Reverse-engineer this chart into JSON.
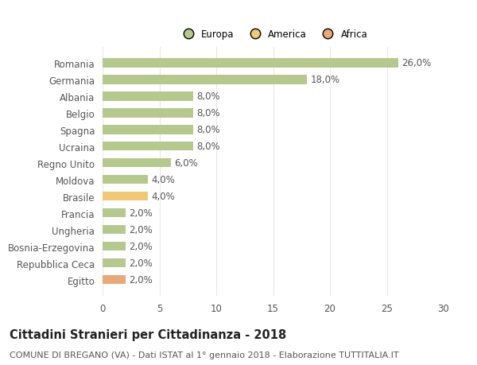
{
  "categories": [
    "Romania",
    "Germania",
    "Albania",
    "Belgio",
    "Spagna",
    "Ucraina",
    "Regno Unito",
    "Moldova",
    "Brasile",
    "Francia",
    "Ungheria",
    "Bosnia-Erzegovina",
    "Repubblica Ceca",
    "Egitto"
  ],
  "values": [
    26.0,
    18.0,
    8.0,
    8.0,
    8.0,
    8.0,
    6.0,
    4.0,
    4.0,
    2.0,
    2.0,
    2.0,
    2.0,
    2.0
  ],
  "bar_colors": [
    "#b5c98e",
    "#b5c98e",
    "#b5c98e",
    "#b5c98e",
    "#b5c98e",
    "#b5c98e",
    "#b5c98e",
    "#b5c98e",
    "#f0c878",
    "#b5c98e",
    "#b5c98e",
    "#b5c98e",
    "#b5c98e",
    "#e8a878"
  ],
  "legend_labels": [
    "Europa",
    "America",
    "Africa"
  ],
  "legend_colors": [
    "#b5c98e",
    "#f0c878",
    "#e8a878"
  ],
  "title": "Cittadini Stranieri per Cittadinanza - 2018",
  "subtitle": "COMUNE DI BREGANO (VA) - Dati ISTAT al 1° gennaio 2018 - Elaborazione TUTTITALIA.IT",
  "xlim": [
    0,
    30
  ],
  "xticks": [
    0,
    5,
    10,
    15,
    20,
    25,
    30
  ],
  "background_color": "#ffffff",
  "grid_color": "#e8e8e8",
  "bar_height": 0.55,
  "label_fontsize": 8.5,
  "title_fontsize": 10.5,
  "subtitle_fontsize": 8,
  "value_fontsize": 8.5,
  "text_color": "#555555",
  "title_color": "#222222"
}
